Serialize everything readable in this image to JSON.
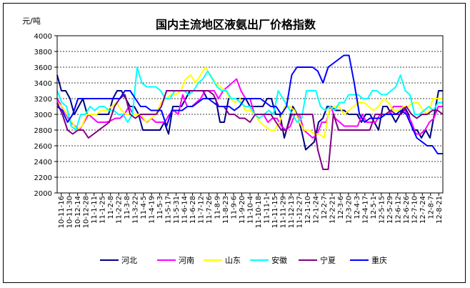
{
  "chart_data": {
    "type": "line",
    "title": "国内主流地区液氨出厂价格指数",
    "ylabel": "元/吨",
    "ylim": [
      2000,
      4000
    ],
    "yticks": [
      2000,
      2200,
      2400,
      2600,
      2800,
      3000,
      3200,
      3400,
      3600,
      3800,
      4000
    ],
    "grid": true,
    "legend_position": "bottom",
    "x_tick_labels": [
      "10-11-16",
      "10-11-30",
      "10-12-14",
      "10-12-28",
      "11-1-11",
      "11-1-25",
      "11-2-8",
      "11-2-22",
      "11-3-8",
      "11-3-22",
      "11-4-5",
      "11-4-19",
      "11-5-3",
      "11-5-17",
      "11-5-31",
      "11-6-14",
      "11-6-28",
      "11-7-12",
      "11-7-26",
      "11-8-9",
      "11-8-23",
      "11-9-6",
      "11-9-20",
      "11-10-4",
      "11-10-18",
      "11-11-1",
      "11-11-15",
      "11-11-29",
      "11-12-13",
      "11-12-27",
      "12-1-10",
      "12-1-24",
      "12-2-7",
      "12-2-21",
      "12-3-6",
      "12-3-20",
      "12-4-3",
      "12-4-17",
      "12-5-1",
      "12-5-15",
      "12-5-29",
      "12-6-12",
      "12-6-26",
      "12-7-10",
      "12-7-24",
      "12-8-7",
      "12-8-21"
    ],
    "series": [
      {
        "name": "河北",
        "color": "#000080",
        "values": [
          3500,
          3300,
          3300,
          3200,
          3000,
          3100,
          3200,
          3000,
          3000,
          3000,
          3000,
          3000,
          3000,
          3200,
          3300,
          3300,
          3200,
          3100,
          3100,
          3000,
          2800,
          2800,
          2800,
          2800,
          2800,
          2900,
          2750,
          3100,
          3100,
          3100,
          3200,
          3300,
          3300,
          3300,
          3300,
          3200,
          3200,
          3200,
          2900,
          2900,
          3200,
          3200,
          3200,
          3200,
          3200,
          3100,
          3100,
          3100,
          3100,
          3200,
          3200,
          3000,
          3000,
          2700,
          2900,
          3100,
          3000,
          2800,
          2550,
          2600,
          2650,
          2900,
          2950,
          3100,
          3100,
          3050,
          3050,
          3050,
          3000,
          3000,
          3000,
          2900,
          3000,
          3000,
          2900,
          2800,
          3100,
          3100,
          3000,
          2900,
          3000,
          3100,
          3000,
          2800,
          2800,
          2700,
          2800,
          2700,
          3000,
          3300,
          3300
        ]
      },
      {
        "name": "河南",
        "color": "#FF00FF",
        "values": [
          3200,
          3100,
          3000,
          2900,
          2850,
          2800,
          2900,
          3000,
          2950,
          2900,
          2900,
          2900,
          2920,
          2950,
          2950,
          3000,
          3100,
          3000,
          3000,
          2950,
          2900,
          2950,
          2900,
          2900,
          2900,
          3000,
          3050,
          3000,
          3250,
          3100,
          3100,
          3150,
          3200,
          3300,
          3300,
          3300,
          3200,
          3300,
          3350,
          3400,
          3450,
          3300,
          3200,
          3200,
          3000,
          3000,
          3000,
          2900,
          2950,
          2950,
          2850,
          2800,
          2850,
          3000,
          3000,
          2800,
          2750,
          2700,
          2750,
          2900,
          2900,
          3100,
          2950,
          2900,
          2850,
          2850,
          2850,
          2850,
          3000,
          2900,
          2900,
          2900,
          3000,
          3000,
          3000,
          3100,
          3100,
          3100,
          3000,
          2900,
          2750,
          2750,
          2800,
          2900,
          2950,
          3100,
          3100
        ]
      },
      {
        "name": "山东",
        "color": "#FFFF00",
        "values": [
          3150,
          3100,
          3000,
          2900,
          2800,
          2850,
          3000,
          3000,
          3000,
          3050,
          3050,
          3100,
          3150,
          3050,
          3000,
          3000,
          3000,
          3000,
          2900,
          2950,
          3000,
          3150,
          3200,
          3250,
          3250,
          3300,
          3450,
          3500,
          3400,
          3500,
          3600,
          3500,
          3400,
          3350,
          3300,
          3200,
          3150,
          3200,
          3050,
          3050,
          3000,
          2900,
          2850,
          2800,
          2800,
          2900,
          3100,
          3100,
          3050,
          2900,
          2800,
          2800,
          2750,
          2750,
          2700,
          3050,
          3100,
          3100,
          3000,
          3050,
          3100,
          3150,
          3150,
          3100,
          3050,
          3100,
          3200,
          3150,
          3050,
          3050,
          3100,
          3100,
          3150,
          3150,
          3050,
          3000,
          3200,
          3200,
          3200
        ]
      },
      {
        "name": "安徽",
        "color": "#00FFFF",
        "values": [
          3300,
          3150,
          3100,
          2850,
          2800,
          3000,
          3000,
          3100,
          3050,
          3100,
          3100,
          3050,
          3050,
          3000,
          3000,
          2900,
          3000,
          3600,
          3400,
          3350,
          3350,
          3350,
          3300,
          3200,
          3200,
          3300,
          3300,
          3300,
          3250,
          3300,
          3400,
          3450,
          3550,
          3450,
          3350,
          3300,
          3300,
          3200,
          3200,
          3150,
          3100,
          3100,
          3000,
          2950,
          3000,
          3050,
          3000,
          3300,
          3200,
          3100,
          3000,
          2900,
          2950,
          3300,
          3300,
          3300,
          3100,
          3050,
          3100,
          3050,
          3150,
          3150,
          3250,
          3250,
          3250,
          3200,
          3200,
          3300,
          3300,
          3250,
          3250,
          3300,
          3350,
          3500,
          3300,
          3250,
          3000,
          3000,
          3050,
          3100,
          3050,
          3150,
          3150
        ]
      },
      {
        "name": "宁夏",
        "color": "#800080",
        "values": [
          3150,
          3000,
          2800,
          2750,
          2800,
          2800,
          2700,
          2750,
          2800,
          2850,
          2900,
          3100,
          3200,
          3250,
          3000,
          2950,
          3000,
          3000,
          3000,
          3000,
          3100,
          3300,
          3300,
          3300,
          3300,
          3300,
          3300,
          3300,
          3300,
          3300,
          3250,
          3100,
          3100,
          3000,
          3000,
          2950,
          2950,
          2900,
          3000,
          3000,
          3000,
          3000,
          2900,
          2800,
          2800,
          3000,
          3000,
          3000,
          3000,
          3000,
          2550,
          2300,
          2300,
          3000,
          2800,
          2800,
          2800,
          2800,
          2800,
          2800,
          2800,
          3000,
          3000,
          3000,
          3050,
          3000,
          3000,
          3100,
          3000,
          2950,
          3000,
          3000,
          3050,
          3050,
          3000
        ]
      },
      {
        "name": "重庆",
        "color": "#0000FF",
        "values": [
          3100,
          3050,
          2900,
          3000,
          3200,
          3200,
          3200,
          3200,
          3200,
          3200,
          3200,
          3200,
          3200,
          3300,
          3300,
          3200,
          3100,
          3100,
          3050,
          3050,
          3050,
          2850,
          3050,
          3050,
          3050,
          3100,
          3100,
          3150,
          3200,
          3200,
          3150,
          3100,
          3100,
          3100,
          3050,
          3100,
          3200,
          3200,
          3200,
          3200,
          3150,
          3100,
          3100,
          3000,
          3100,
          3500,
          3600,
          3600,
          3600,
          3600,
          3550,
          3400,
          3600,
          3650,
          3700,
          3750,
          3750,
          3400,
          3000,
          2900,
          2950,
          2950,
          2950,
          3000,
          3000,
          3000,
          3050,
          3000,
          2850,
          2700,
          2650,
          2600,
          2600,
          2500,
          2500
        ]
      }
    ]
  }
}
